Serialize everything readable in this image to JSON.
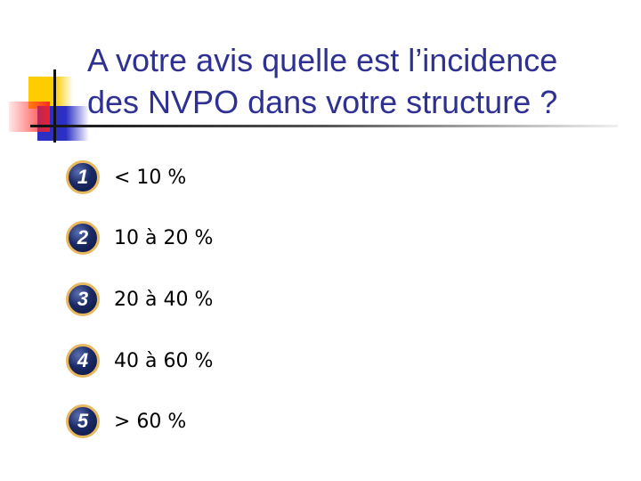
{
  "slide": {
    "title_line1": "A votre avis quelle est l’incidence",
    "title_line2": "des NVPO dans votre structure ?",
    "accent_color": "#2e3192",
    "options": [
      {
        "number": "1",
        "label": "< 10 %"
      },
      {
        "number": "2",
        "label": "10 à 20 %"
      },
      {
        "number": "3",
        "label": "20 à 40 %"
      },
      {
        "number": "4",
        "label": "40 à 60 %"
      },
      {
        "number": "5",
        "label": "> 60 %"
      }
    ]
  }
}
